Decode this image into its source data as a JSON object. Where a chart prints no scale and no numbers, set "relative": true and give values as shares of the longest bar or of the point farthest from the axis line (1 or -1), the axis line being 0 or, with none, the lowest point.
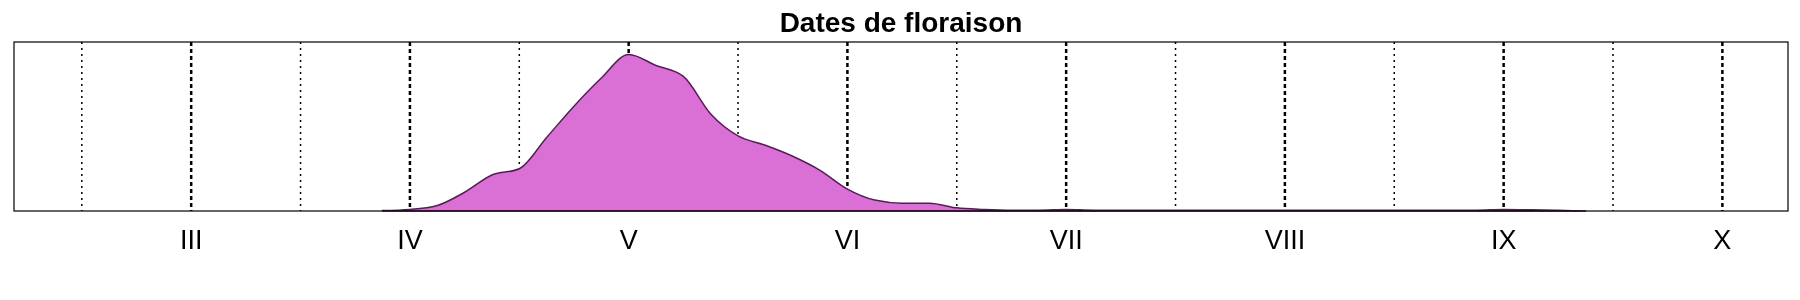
{
  "chart_data": {
    "type": "area",
    "title": "Dates de floraison",
    "relative": true,
    "grid": "x",
    "categories": [
      null,
      null,
      null,
      null,
      null,
      null,
      "III",
      null,
      null,
      null,
      null,
      null,
      null,
      null,
      "IV",
      null,
      null,
      null,
      null,
      null,
      null,
      null,
      "V",
      null,
      null,
      null,
      null,
      null,
      null,
      null,
      "VI",
      null,
      null,
      null,
      null,
      null,
      null,
      null,
      "VII",
      null,
      null,
      null,
      null,
      null,
      null,
      null,
      "VIII",
      null,
      null,
      null,
      null,
      null,
      null,
      null,
      "IX",
      null,
      null,
      null,
      null,
      null,
      null,
      null,
      "X",
      null,
      null
    ],
    "series": [
      {
        "color": "#da70d6",
        "values": [
          null,
          null,
          null,
          null,
          null,
          null,
          null,
          null,
          null,
          null,
          null,
          null,
          null,
          0.003,
          0.01,
          0.035,
          0.12,
          0.23,
          0.27,
          0.47,
          0.67,
          0.85,
          1.0,
          0.93,
          0.86,
          0.62,
          0.48,
          0.42,
          0.35,
          0.26,
          0.14,
          0.07,
          0.05,
          0.05,
          0.02,
          0.01,
          0.005,
          0.005,
          0.01,
          0.005,
          0.005,
          0.005,
          0.005,
          0.005,
          0.005,
          0.005,
          0.005,
          0.005,
          0.005,
          0.005,
          0.005,
          0.005,
          0.005,
          0.005,
          0.01,
          0.008,
          0.004,
          0,
          null,
          null,
          null,
          null,
          null,
          null,
          null
        ]
      }
    ]
  }
}
